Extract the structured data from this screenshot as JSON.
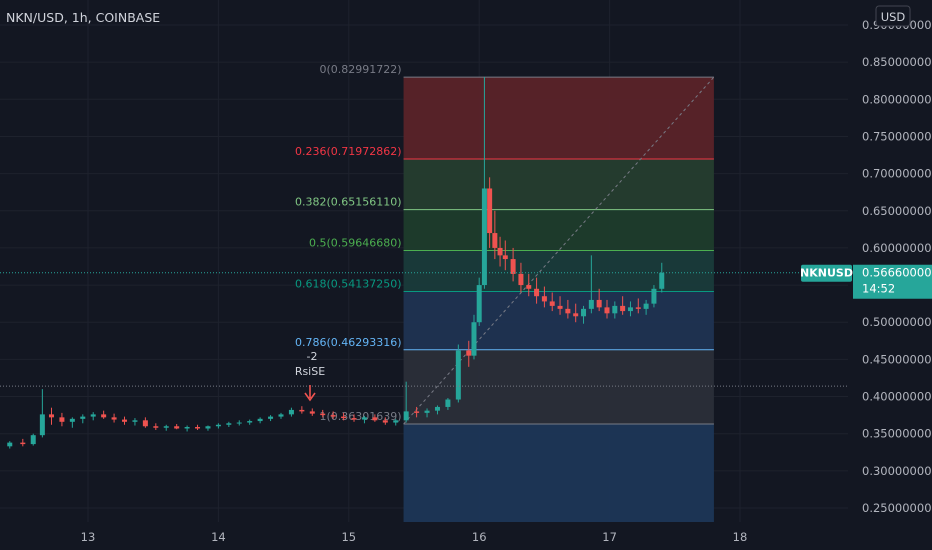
{
  "header": {
    "symbol_title": "NKN/USD, 1h, COINBASE"
  },
  "price_scale": {
    "currency_label": "USD",
    "ticks": [
      "0.90000000",
      "0.85000000",
      "0.80000000",
      "0.75000000",
      "0.70000000",
      "0.65000000",
      "0.60000000",
      "0.55000000",
      "0.50000000",
      "0.45000000",
      "0.40000000",
      "0.35000000",
      "0.30000000",
      "0.25000000"
    ]
  },
  "time_axis": {
    "ticks": [
      "13",
      "14",
      "15",
      "16",
      "17",
      "18"
    ]
  },
  "price_tag": {
    "symbol": "NKNUSD",
    "price": "0.56660000",
    "countdown": "14:52",
    "color": "#26a69a"
  },
  "signal": {
    "line1": "-2",
    "line2": "RsiSE",
    "arrow_color": "#ef5350"
  },
  "colors": {
    "background": "#131722",
    "up": "#26a69a",
    "down": "#ef5350"
  },
  "chart_data": {
    "type": "candlestick",
    "title": "NKN/USD, 1h, COINBASE",
    "y_axis": {
      "range": [
        0.23,
        0.925
      ],
      "unit": "USD"
    },
    "x_axis": {
      "ticks": [
        "13",
        "14",
        "15",
        "16",
        "17",
        "18"
      ]
    },
    "last_price": 0.5666,
    "fibonacci_retracement": {
      "from_price": 0.363,
      "to_price": 0.82991722,
      "extends_to_day": 17.8,
      "levels": [
        {
          "label": "0(0.82991722)",
          "ratio": 0,
          "price": 0.82991722,
          "color": "#787b86",
          "fill": "#5a2329"
        },
        {
          "label": "0.236(0.71972862)",
          "ratio": 0.236,
          "price": 0.71972862,
          "color": "#f23645",
          "fill": "#253d2f"
        },
        {
          "label": "0.382(0.65156110)",
          "ratio": 0.382,
          "price": 0.6515611,
          "color": "#81c784",
          "fill": "#1e3c2c"
        },
        {
          "label": "0.5(0.59646680)",
          "ratio": 0.5,
          "price": 0.5964668,
          "color": "#4caf50",
          "fill": "#193b3b"
        },
        {
          "label": "0.618(0.54137250)",
          "ratio": 0.618,
          "price": 0.5413725,
          "color": "#089981",
          "fill": "#1f3352"
        },
        {
          "label": "0.786(0.46293316)",
          "ratio": 0.786,
          "price": 0.46293316,
          "color": "#64b5f6",
          "fill": "#2a2e39"
        },
        {
          "label": "1(0.36301639)",
          "ratio": 1,
          "price": 0.36301639,
          "color": "#787b86",
          "fill": "#1c3657"
        }
      ]
    },
    "series": [
      {
        "name": "NKNUSD",
        "t": [
          [
            12.0,
            0.33,
            0.335,
            0.325,
            0.328
          ],
          [
            12.1,
            0.328,
            0.333,
            0.324,
            0.331
          ],
          [
            12.2,
            0.331,
            0.336,
            0.327,
            0.33
          ],
          [
            12.3,
            0.33,
            0.334,
            0.326,
            0.333
          ],
          [
            12.4,
            0.333,
            0.34,
            0.33,
            0.338
          ],
          [
            12.5,
            0.338,
            0.343,
            0.333,
            0.336
          ],
          [
            12.58,
            0.336,
            0.35,
            0.334,
            0.348
          ],
          [
            12.65,
            0.348,
            0.41,
            0.345,
            0.376
          ],
          [
            12.72,
            0.376,
            0.385,
            0.362,
            0.372
          ],
          [
            12.8,
            0.372,
            0.378,
            0.36,
            0.366
          ],
          [
            12.88,
            0.366,
            0.372,
            0.358,
            0.37
          ],
          [
            12.96,
            0.37,
            0.376,
            0.364,
            0.373
          ],
          [
            13.04,
            0.373,
            0.379,
            0.368,
            0.376
          ],
          [
            13.12,
            0.376,
            0.381,
            0.37,
            0.372
          ],
          [
            13.2,
            0.372,
            0.377,
            0.365,
            0.369
          ],
          [
            13.28,
            0.369,
            0.373,
            0.362,
            0.366
          ],
          [
            13.36,
            0.366,
            0.371,
            0.361,
            0.368
          ],
          [
            13.44,
            0.368,
            0.372,
            0.358,
            0.36
          ],
          [
            13.52,
            0.36,
            0.364,
            0.355,
            0.358
          ],
          [
            13.6,
            0.358,
            0.362,
            0.354,
            0.36
          ],
          [
            13.68,
            0.36,
            0.363,
            0.356,
            0.357
          ],
          [
            13.76,
            0.357,
            0.361,
            0.353,
            0.359
          ],
          [
            13.84,
            0.359,
            0.362,
            0.355,
            0.357
          ],
          [
            13.92,
            0.357,
            0.361,
            0.354,
            0.36
          ],
          [
            14.0,
            0.36,
            0.364,
            0.357,
            0.362
          ],
          [
            14.08,
            0.362,
            0.366,
            0.359,
            0.364
          ],
          [
            14.16,
            0.364,
            0.368,
            0.361,
            0.365
          ],
          [
            14.24,
            0.365,
            0.369,
            0.362,
            0.367
          ],
          [
            14.32,
            0.367,
            0.372,
            0.364,
            0.37
          ],
          [
            14.4,
            0.37,
            0.375,
            0.367,
            0.373
          ],
          [
            14.48,
            0.373,
            0.378,
            0.37,
            0.376
          ],
          [
            14.56,
            0.376,
            0.385,
            0.373,
            0.382
          ],
          [
            14.64,
            0.382,
            0.387,
            0.377,
            0.38
          ],
          [
            14.72,
            0.38,
            0.384,
            0.374,
            0.377
          ],
          [
            14.8,
            0.377,
            0.382,
            0.372,
            0.375
          ],
          [
            14.88,
            0.375,
            0.38,
            0.37,
            0.373
          ],
          [
            14.96,
            0.373,
            0.378,
            0.368,
            0.371
          ],
          [
            15.04,
            0.371,
            0.376,
            0.366,
            0.369
          ],
          [
            15.12,
            0.369,
            0.374,
            0.364,
            0.372
          ],
          [
            15.2,
            0.372,
            0.376,
            0.366,
            0.368
          ],
          [
            15.28,
            0.368,
            0.372,
            0.362,
            0.365
          ],
          [
            15.36,
            0.365,
            0.37,
            0.361,
            0.368
          ],
          [
            15.44,
            0.368,
            0.42,
            0.365,
            0.38
          ],
          [
            15.52,
            0.38,
            0.386,
            0.372,
            0.378
          ],
          [
            15.6,
            0.378,
            0.384,
            0.372,
            0.381
          ],
          [
            15.68,
            0.381,
            0.388,
            0.376,
            0.386
          ],
          [
            15.76,
            0.386,
            0.398,
            0.382,
            0.396
          ],
          [
            15.84,
            0.396,
            0.47,
            0.392,
            0.462
          ],
          [
            15.92,
            0.462,
            0.475,
            0.44,
            0.455
          ],
          [
            15.96,
            0.455,
            0.51,
            0.45,
            0.5
          ],
          [
            16.0,
            0.5,
            0.56,
            0.495,
            0.55
          ],
          [
            16.04,
            0.55,
            0.83,
            0.545,
            0.68
          ],
          [
            16.08,
            0.68,
            0.695,
            0.6,
            0.62
          ],
          [
            16.12,
            0.62,
            0.65,
            0.585,
            0.6
          ],
          [
            16.16,
            0.6,
            0.615,
            0.575,
            0.59
          ],
          [
            16.2,
            0.59,
            0.61,
            0.57,
            0.585
          ],
          [
            16.26,
            0.585,
            0.6,
            0.555,
            0.565
          ],
          [
            16.32,
            0.565,
            0.58,
            0.54,
            0.55
          ],
          [
            16.38,
            0.55,
            0.565,
            0.535,
            0.545
          ],
          [
            16.44,
            0.545,
            0.56,
            0.525,
            0.535
          ],
          [
            16.5,
            0.535,
            0.548,
            0.52,
            0.528
          ],
          [
            16.56,
            0.528,
            0.54,
            0.515,
            0.522
          ],
          [
            16.62,
            0.522,
            0.535,
            0.51,
            0.518
          ],
          [
            16.68,
            0.518,
            0.53,
            0.505,
            0.512
          ],
          [
            16.74,
            0.512,
            0.525,
            0.5,
            0.508
          ],
          [
            16.8,
            0.508,
            0.522,
            0.498,
            0.518
          ],
          [
            16.86,
            0.518,
            0.59,
            0.512,
            0.53
          ],
          [
            16.92,
            0.53,
            0.545,
            0.515,
            0.52
          ],
          [
            16.98,
            0.52,
            0.53,
            0.505,
            0.512
          ],
          [
            17.04,
            0.512,
            0.528,
            0.505,
            0.522
          ],
          [
            17.1,
            0.522,
            0.535,
            0.51,
            0.515
          ],
          [
            17.16,
            0.515,
            0.528,
            0.508,
            0.52
          ],
          [
            17.22,
            0.52,
            0.532,
            0.512,
            0.518
          ],
          [
            17.28,
            0.518,
            0.53,
            0.51,
            0.525
          ],
          [
            17.34,
            0.525,
            0.55,
            0.52,
            0.545
          ],
          [
            17.4,
            0.545,
            0.58,
            0.54,
            0.5666
          ]
        ]
      }
    ]
  }
}
